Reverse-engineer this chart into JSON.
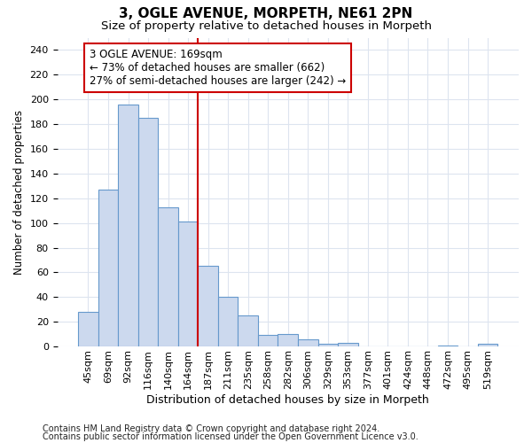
{
  "title1": "3, OGLE AVENUE, MORPETH, NE61 2PN",
  "title2": "Size of property relative to detached houses in Morpeth",
  "xlabel": "Distribution of detached houses by size in Morpeth",
  "ylabel": "Number of detached properties",
  "categories": [
    "45sqm",
    "69sqm",
    "92sqm",
    "116sqm",
    "140sqm",
    "164sqm",
    "187sqm",
    "211sqm",
    "235sqm",
    "258sqm",
    "282sqm",
    "306sqm",
    "329sqm",
    "353sqm",
    "377sqm",
    "401sqm",
    "424sqm",
    "448sqm",
    "472sqm",
    "495sqm",
    "519sqm"
  ],
  "values": [
    28,
    127,
    196,
    185,
    113,
    101,
    65,
    40,
    25,
    9,
    10,
    6,
    2,
    3,
    0,
    0,
    0,
    0,
    1,
    0,
    2
  ],
  "bar_color": "#ccd9ee",
  "bar_edge_color": "#6699cc",
  "red_line_index": 6,
  "annotation_line1": "3 OGLE AVENUE: 169sqm",
  "annotation_line2": "← 73% of detached houses are smaller (662)",
  "annotation_line3": "27% of semi-detached houses are larger (242) →",
  "annotation_box_color": "white",
  "annotation_box_edge_color": "#cc0000",
  "red_line_color": "#cc0000",
  "footer1": "Contains HM Land Registry data © Crown copyright and database right 2024.",
  "footer2": "Contains public sector information licensed under the Open Government Licence v3.0.",
  "ylim": [
    0,
    250
  ],
  "yticks": [
    0,
    20,
    40,
    60,
    80,
    100,
    120,
    140,
    160,
    180,
    200,
    220,
    240
  ],
  "background_color": "#ffffff",
  "grid_color": "#dde4ef",
  "title1_fontsize": 11,
  "title2_fontsize": 9.5,
  "xlabel_fontsize": 9,
  "ylabel_fontsize": 8.5,
  "tick_fontsize": 8,
  "annotation_fontsize": 8.5,
  "footer_fontsize": 7
}
